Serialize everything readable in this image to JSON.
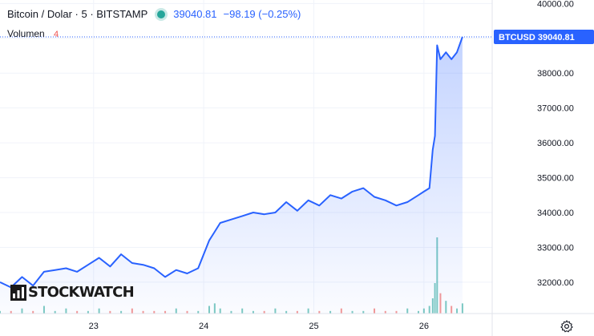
{
  "header": {
    "symbol_title": "Bitcoin / Dolar · 5 · BITSTAMP",
    "last_price": "39040.81",
    "change": "−98.19 (−0.25%)"
  },
  "volume": {
    "label": "Volumen",
    "value": "4"
  },
  "price_tag": {
    "symbol": "BTCUSD",
    "value": "39040.81"
  },
  "logo_text": "STOCKWATCH",
  "colors": {
    "line": "#2962ff",
    "area_top": "#2962ff",
    "tag_bg": "#2962ff",
    "status_dot": "#26a69a",
    "change": "#2962ff",
    "volume_up": "#26a69a",
    "volume_down": "#ef5350"
  },
  "chart_data": {
    "type": "area",
    "symbol": "BTCUSD",
    "exchange": "BITSTAMP",
    "interval": "5",
    "y_axis_ticks": [
      "32000.00",
      "33000.00",
      "34000.00",
      "35000.00",
      "36000.00",
      "37000.00",
      "38000.00",
      "39000.00",
      "40000.00"
    ],
    "x_axis_ticks": [
      "23",
      "24",
      "25",
      "26"
    ],
    "ylim": [
      31100,
      40100
    ],
    "xlim": [
      22.15,
      26.62
    ],
    "grid": true,
    "last_value": 39040.81,
    "series": [
      {
        "values_x": [
          22.15,
          22.25,
          22.35,
          22.45,
          22.55,
          22.65,
          22.75,
          22.85,
          22.95,
          23.05,
          23.15,
          23.25,
          23.35,
          23.45,
          23.55,
          23.65,
          23.75,
          23.85,
          23.95,
          24.05,
          24.1,
          24.15,
          24.25,
          24.35,
          24.45,
          24.55,
          24.65,
          24.75,
          24.85,
          24.95,
          25.05,
          25.15,
          25.25,
          25.35,
          25.45,
          25.55,
          25.65,
          25.75,
          25.85,
          25.95,
          26.0,
          26.05,
          26.08,
          26.1,
          26.12,
          26.15,
          26.2,
          26.25,
          26.3,
          26.35
        ],
        "values_y": [
          32000,
          31850,
          32150,
          31900,
          32300,
          32350,
          32400,
          32300,
          32500,
          32700,
          32450,
          32800,
          32550,
          32500,
          32400,
          32150,
          32350,
          32250,
          32400,
          33200,
          33450,
          33700,
          33800,
          33900,
          34000,
          33950,
          34000,
          34300,
          34050,
          34350,
          34200,
          34500,
          34400,
          34600,
          34700,
          34450,
          34350,
          34200,
          34300,
          34500,
          34600,
          34700,
          35800,
          36200,
          38800,
          38400,
          38600,
          38400,
          38600,
          39040.81
        ]
      }
    ],
    "volume_bars": [
      1,
      1,
      2,
      1,
      3,
      1,
      2,
      1,
      1,
      2,
      1,
      1,
      2,
      1,
      1,
      1,
      2,
      1,
      1,
      3,
      4,
      2,
      1,
      2,
      1,
      1,
      2,
      1,
      1,
      2,
      1,
      1,
      2,
      1,
      1,
      2,
      1,
      1,
      2,
      1,
      2,
      3,
      6,
      12,
      30,
      8,
      5,
      3,
      2,
      4
    ]
  }
}
